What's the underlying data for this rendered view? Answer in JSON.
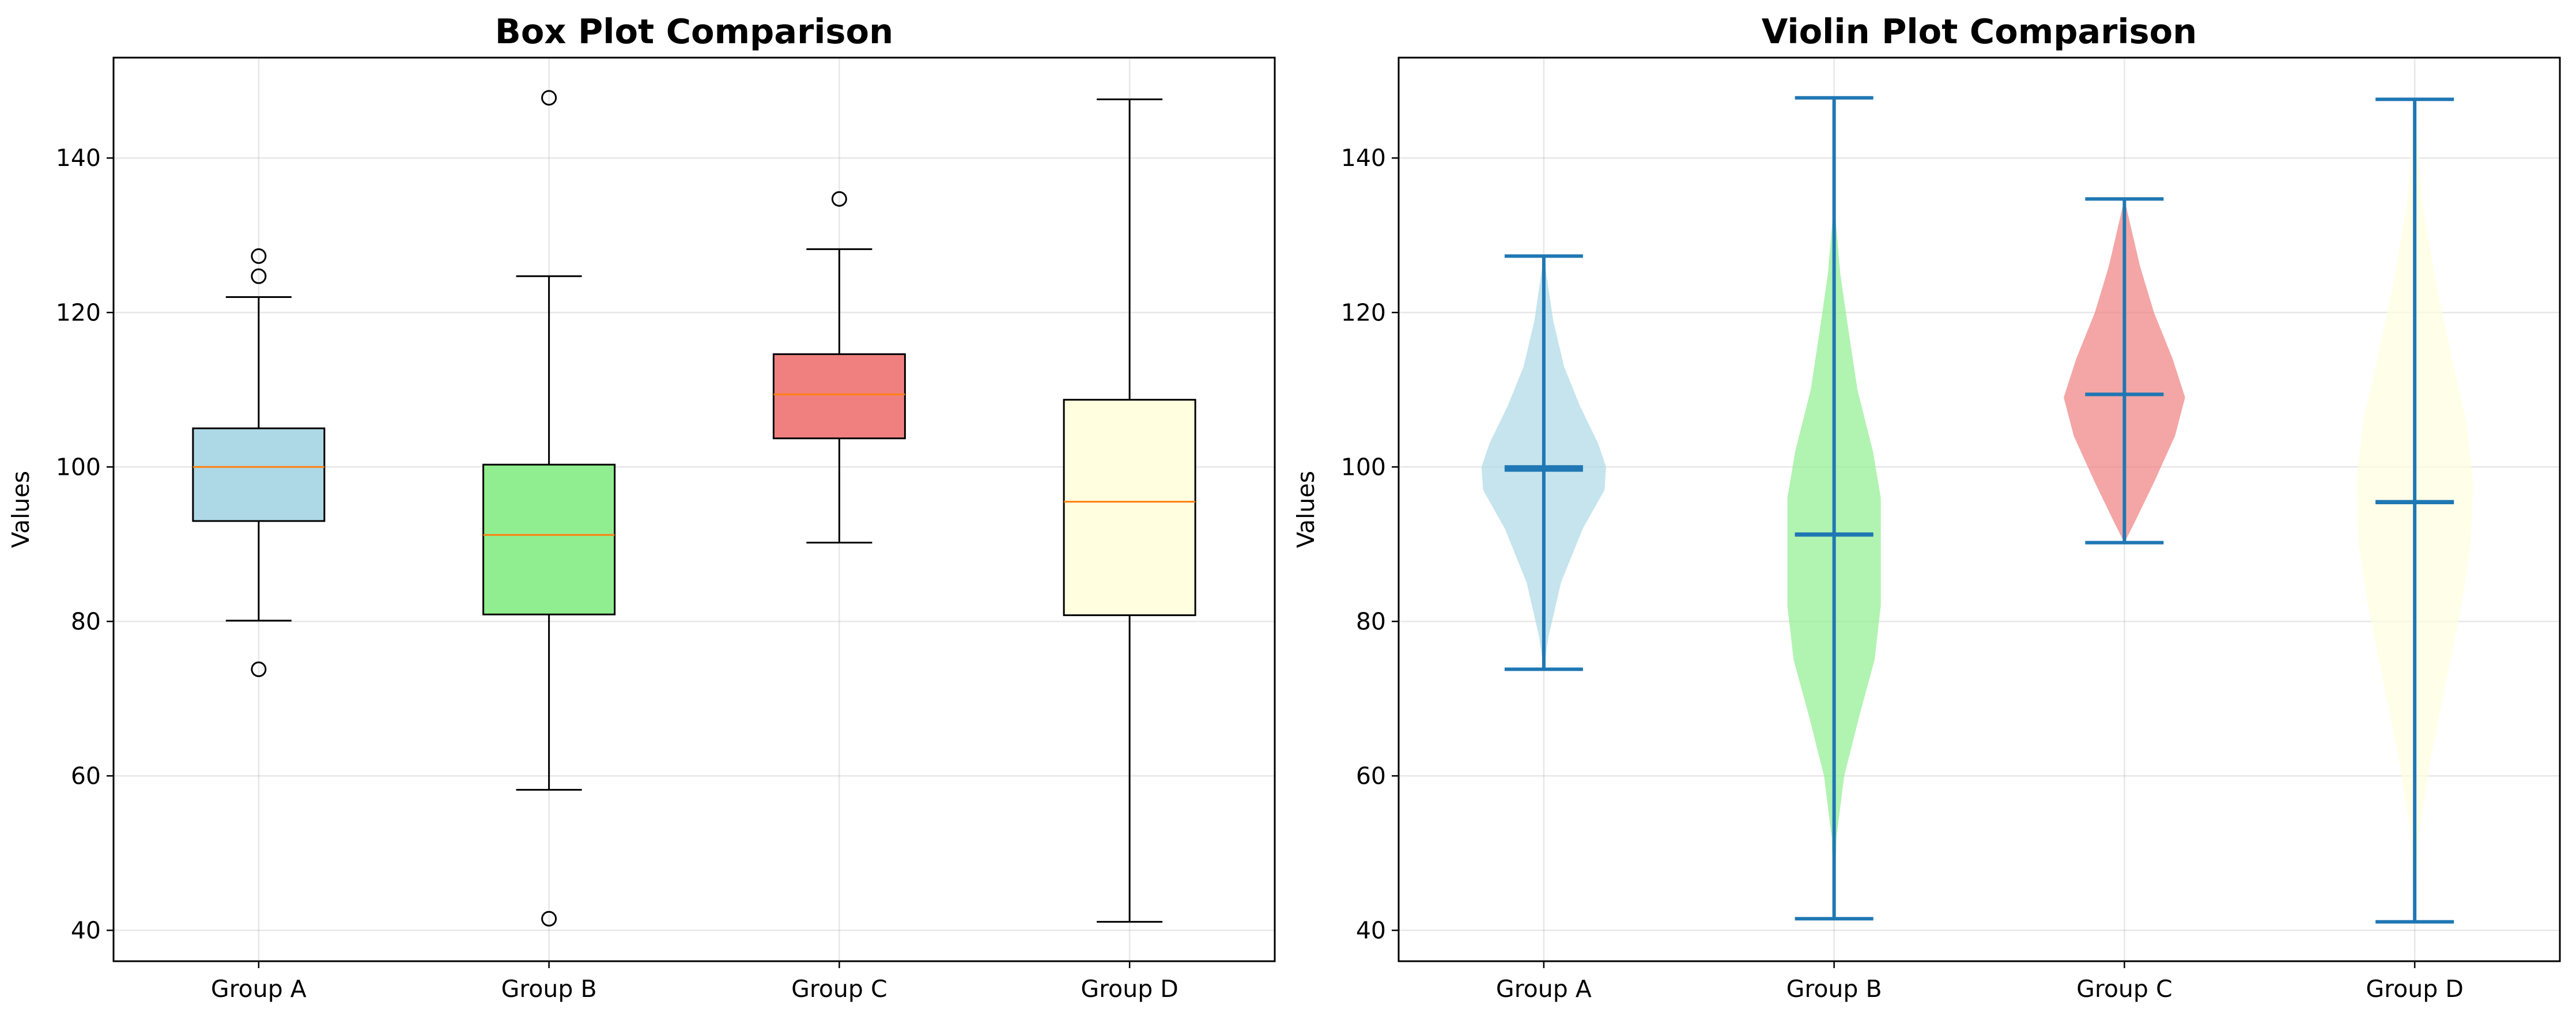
{
  "chart_data": [
    {
      "type": "box",
      "title": "Box Plot Comparison",
      "xlabel": "",
      "ylabel": "Values",
      "ylim": [
        36,
        153
      ],
      "yticks": [
        40,
        60,
        80,
        100,
        120,
        140
      ],
      "grid": true,
      "categories": [
        "Group A",
        "Group B",
        "Group C",
        "Group D"
      ],
      "colors": [
        "#add8e6",
        "#90ee90",
        "#f08080",
        "#ffffe0"
      ],
      "median_color": "#ff7f0e",
      "boxes": [
        {
          "category": "Group A",
          "whisker_low": 80.1,
          "q1": 93.0,
          "median": 100.0,
          "q3": 105.0,
          "whisker_high": 122.0,
          "outliers": [
            73.8,
            124.7,
            127.3
          ]
        },
        {
          "category": "Group B",
          "whisker_low": 58.2,
          "q1": 80.9,
          "median": 91.2,
          "q3": 100.3,
          "whisker_high": 124.7,
          "outliers": [
            41.5,
            147.8
          ]
        },
        {
          "category": "Group C",
          "whisker_low": 90.2,
          "q1": 103.7,
          "median": 109.4,
          "q3": 114.6,
          "whisker_high": 128.2,
          "outliers": [
            134.7
          ]
        },
        {
          "category": "Group D",
          "whisker_low": 41.1,
          "q1": 80.8,
          "median": 95.5,
          "q3": 108.7,
          "whisker_high": 147.6,
          "outliers": []
        }
      ]
    },
    {
      "type": "violin",
      "title": "Violin Plot Comparison",
      "xlabel": "",
      "ylabel": "Values",
      "ylim": [
        36,
        153
      ],
      "yticks": [
        40,
        60,
        80,
        100,
        120,
        140
      ],
      "grid": true,
      "categories": [
        "Group A",
        "Group B",
        "Group C",
        "Group D"
      ],
      "colors": [
        "#add8e6",
        "#90ee90",
        "#f08080",
        "#ffffe0"
      ],
      "line_color": "#1f77b4",
      "violins": [
        {
          "category": "Group A",
          "min": 73.8,
          "max": 127.3,
          "mean": 99.6,
          "median": 100.0,
          "density": [
            [
              73.8,
              0.0
            ],
            [
              78.0,
              0.06
            ],
            [
              85.0,
              0.22
            ],
            [
              92.0,
              0.5
            ],
            [
              97.0,
              0.78
            ],
            [
              100.0,
              0.8
            ],
            [
              103.0,
              0.7
            ],
            [
              108.0,
              0.46
            ],
            [
              113.0,
              0.26
            ],
            [
              119.0,
              0.12
            ],
            [
              127.3,
              0.0
            ]
          ]
        },
        {
          "category": "Group B",
          "min": 41.5,
          "max": 147.8,
          "mean": 91.3,
          "median": 91.2,
          "density": [
            [
              41.5,
              0.0
            ],
            [
              52.0,
              0.03
            ],
            [
              60.0,
              0.13
            ],
            [
              68.0,
              0.33
            ],
            [
              75.0,
              0.52
            ],
            [
              82.0,
              0.6
            ],
            [
              90.0,
              0.6
            ],
            [
              96.0,
              0.6
            ],
            [
              102.0,
              0.5
            ],
            [
              110.0,
              0.3
            ],
            [
              118.0,
              0.18
            ],
            [
              125.0,
              0.08
            ],
            [
              132.0,
              0.02
            ],
            [
              147.8,
              0.0
            ]
          ]
        },
        {
          "category": "Group C",
          "min": 90.2,
          "max": 134.7,
          "mean": 109.4,
          "median": 109.4,
          "density": [
            [
              90.2,
              0.0
            ],
            [
              93.0,
              0.14
            ],
            [
              98.0,
              0.38
            ],
            [
              104.0,
              0.65
            ],
            [
              109.0,
              0.78
            ],
            [
              114.0,
              0.62
            ],
            [
              120.0,
              0.38
            ],
            [
              126.0,
              0.2
            ],
            [
              134.7,
              0.0
            ]
          ]
        },
        {
          "category": "Group D",
          "min": 41.1,
          "max": 147.6,
          "mean": 95.4,
          "median": 95.5,
          "density": [
            [
              41.1,
              0.0
            ],
            [
              52.0,
              0.05
            ],
            [
              62.0,
              0.2
            ],
            [
              72.0,
              0.4
            ],
            [
              82.0,
              0.6
            ],
            [
              90.0,
              0.72
            ],
            [
              98.0,
              0.75
            ],
            [
              106.0,
              0.66
            ],
            [
              114.0,
              0.48
            ],
            [
              124.0,
              0.27
            ],
            [
              134.0,
              0.1
            ],
            [
              147.6,
              0.0
            ]
          ]
        }
      ]
    }
  ]
}
